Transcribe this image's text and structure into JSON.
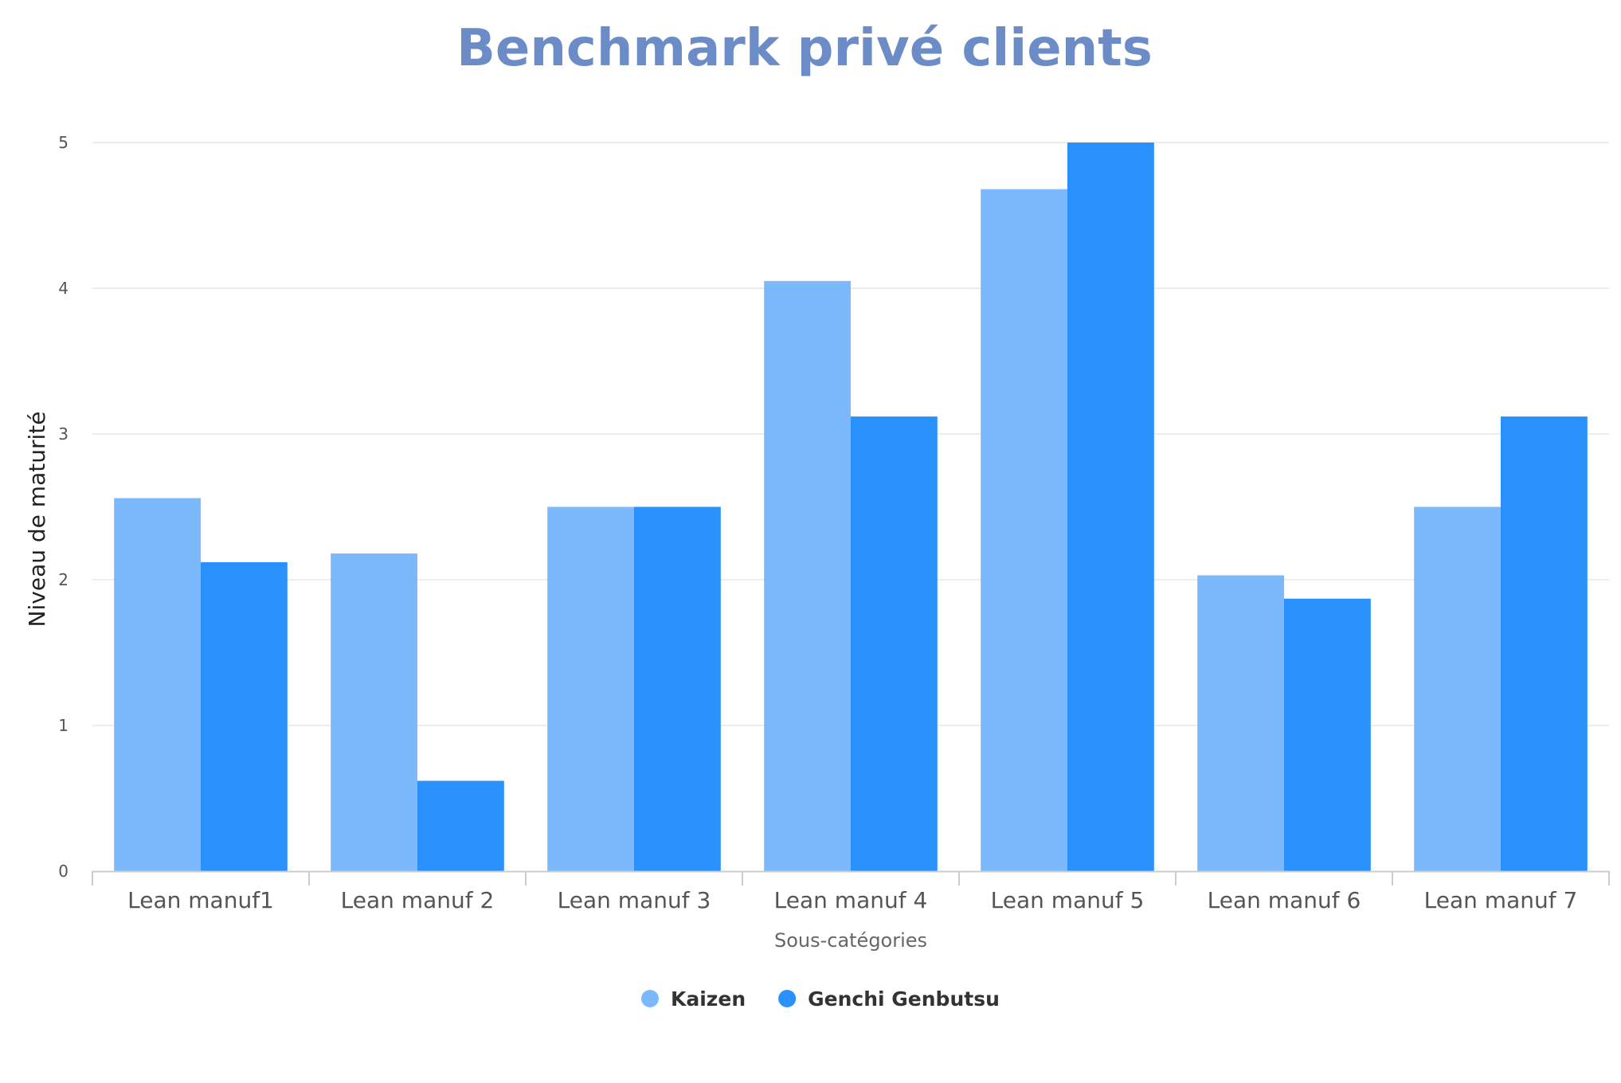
{
  "chart_data": {
    "type": "bar",
    "title": "Benchmark privé clients",
    "xlabel": "Sous-catégories",
    "ylabel": "Niveau de maturité",
    "categories": [
      "Lean manuf1",
      "Lean manuf 2",
      "Lean manuf 3",
      "Lean manuf 4",
      "Lean manuf 5",
      "Lean manuf 6",
      "Lean manuf 7"
    ],
    "series": [
      {
        "name": "Kaizen",
        "color": "#7cb9fc",
        "values": [
          2.56,
          2.18,
          2.5,
          4.05,
          4.68,
          2.03,
          2.5
        ]
      },
      {
        "name": "Genchi Genbutsu",
        "color": "#2a90fc",
        "values": [
          2.12,
          0.62,
          2.5,
          3.12,
          5.0,
          1.87,
          3.12
        ]
      }
    ],
    "ylim": [
      0,
      5
    ],
    "yticks": [
      0,
      1,
      2,
      3,
      4,
      5
    ],
    "grid": true,
    "legend_position": "bottom-center"
  },
  "colors": {
    "title": "#6b8cc7",
    "grid": "#e6e6e6",
    "axis": "#cccccc",
    "tick_text": "#555555",
    "axis_label_x": "#666666",
    "axis_label_y": "#222222",
    "legend_text": "#333333"
  }
}
